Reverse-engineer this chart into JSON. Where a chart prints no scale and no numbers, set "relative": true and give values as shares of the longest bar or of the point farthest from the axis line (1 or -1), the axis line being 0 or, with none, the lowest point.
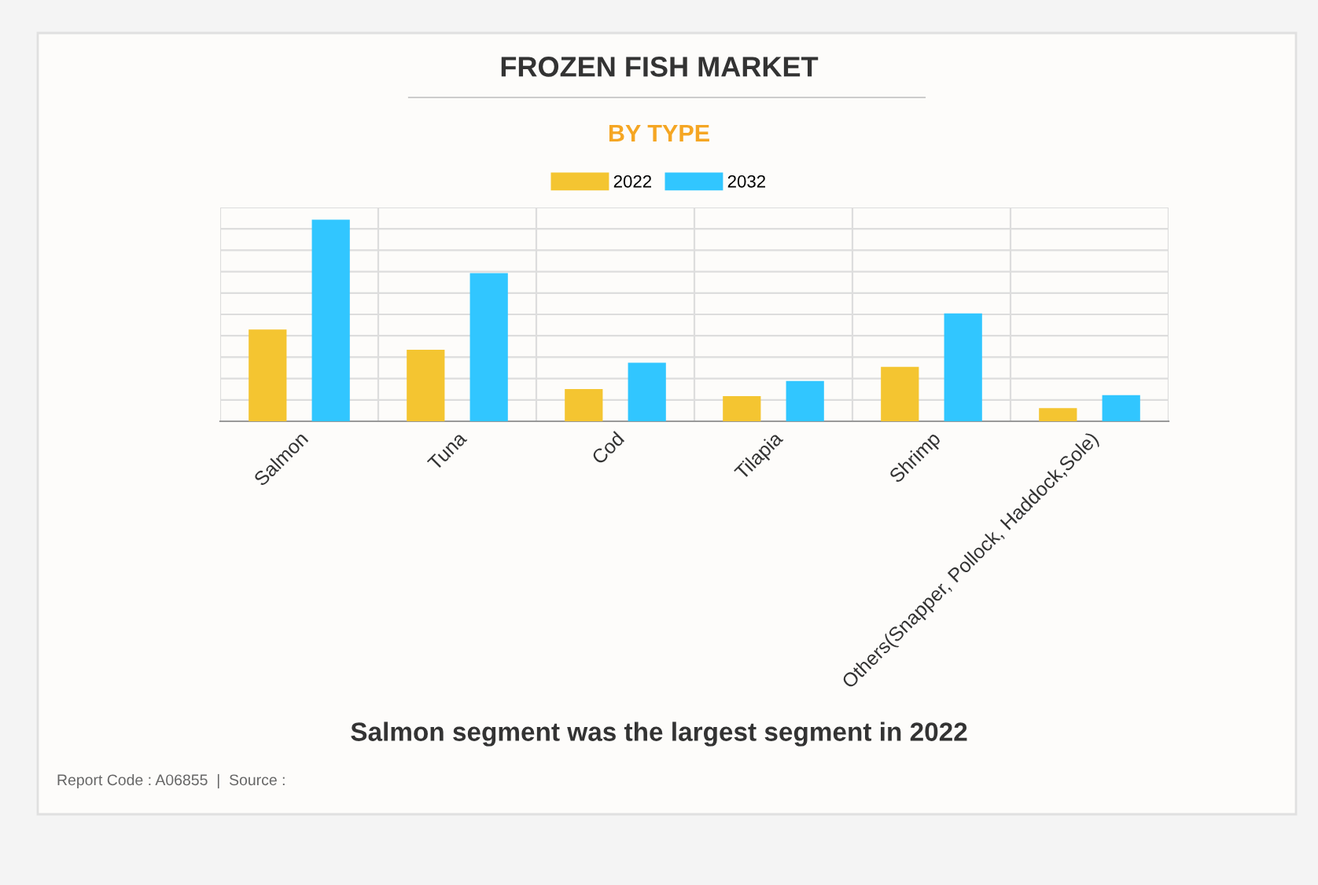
{
  "chart_data": {
    "type": "bar",
    "title": "FROZEN FISH MARKET",
    "subtitle": "BY TYPE",
    "categories": [
      "Salmon",
      "Tuna",
      "Cod",
      "Tilapia",
      "Shrimp",
      "Others(Snapper, Pollock, Haddock,Sole)"
    ],
    "series": [
      {
        "name": "2022",
        "color": "#f4c531",
        "values": [
          0.455,
          0.355,
          0.16,
          0.125,
          0.27,
          0.065
        ]
      },
      {
        "name": "2032",
        "color": "#31c6ff",
        "values": [
          1,
          0.735,
          0.29,
          0.2,
          0.535,
          0.13
        ]
      }
    ],
    "relative": true,
    "grid": true,
    "legend": "top",
    "annotations": [
      "Salmon segment was the largest segment in 2022",
      "Report Code : A06855  |  Source : "
    ]
  }
}
